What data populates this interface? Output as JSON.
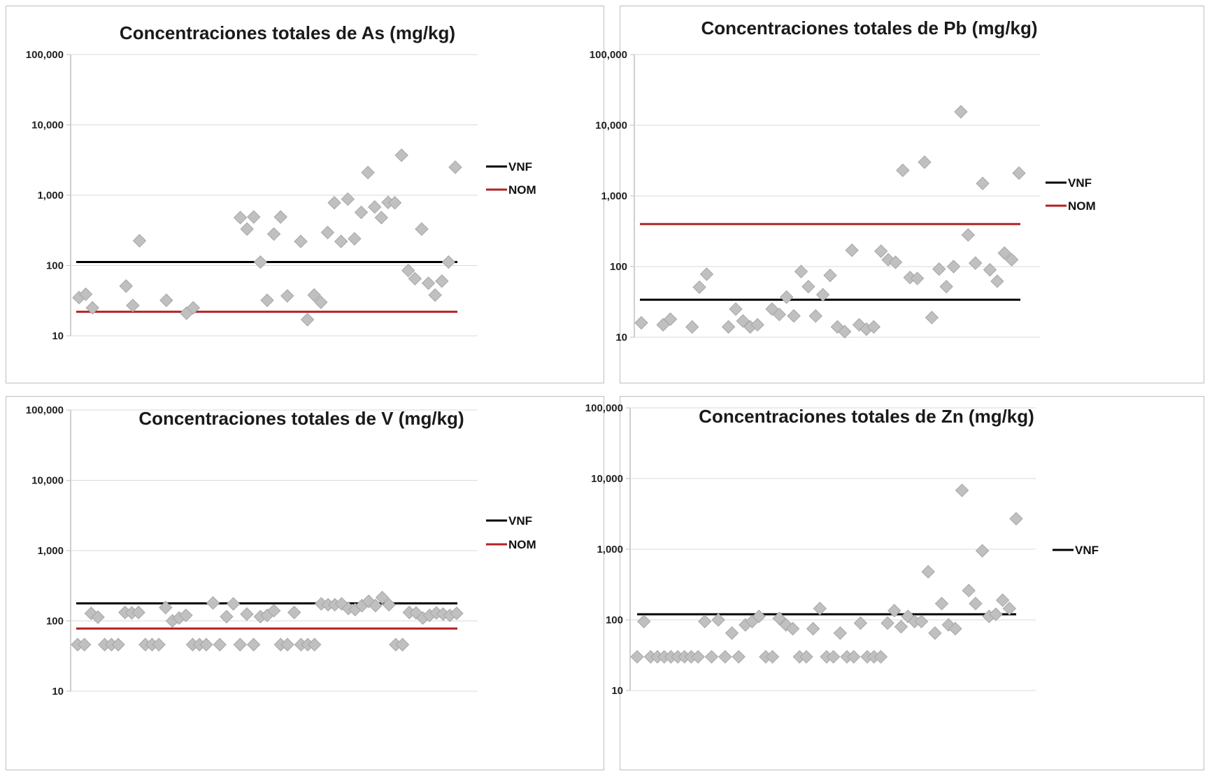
{
  "colors": {
    "marker": "#c0c0c0",
    "marker_stroke": "#a6a6a6",
    "gridline": "#d9d9d9",
    "vnf": "#000000",
    "nom": "#b22222"
  },
  "chart_data": [
    {
      "type": "scatter",
      "title": "Concentraciones totales de As (mg/kg)",
      "yscale": "log",
      "ylim": [
        10,
        100000
      ],
      "yticks": [
        "10",
        "100",
        "1,000",
        "10,000",
        "100,000"
      ],
      "grid": true,
      "legend_position": "right",
      "legend": [
        "VNF",
        "NOM"
      ],
      "reference_lines": [
        {
          "name": "VNF",
          "value": 112,
          "color": "#000000"
        },
        {
          "name": "NOM",
          "value": 22,
          "color": "#b22222"
        }
      ],
      "x": [
        1,
        2,
        3,
        4,
        5,
        6,
        7,
        8,
        9,
        10,
        11,
        12,
        13,
        14,
        15,
        16,
        17,
        18,
        19,
        20,
        21,
        22,
        23,
        24,
        25,
        26,
        27,
        28,
        29,
        30,
        31,
        32,
        33,
        34,
        35,
        36,
        37,
        38,
        39,
        40,
        41,
        42,
        43,
        44,
        45,
        46,
        47,
        48,
        49,
        50,
        51,
        52,
        53,
        54,
        55,
        56,
        57,
        58,
        59,
        60
      ],
      "values": [
        35,
        39,
        25,
        null,
        null,
        null,
        null,
        51,
        27,
        225,
        null,
        null,
        null,
        32,
        null,
        null,
        21,
        25,
        null,
        null,
        null,
        null,
        null,
        null,
        480,
        330,
        490,
        112,
        32,
        280,
        490,
        37,
        null,
        220,
        17,
        38,
        30,
        295,
        780,
        220,
        880,
        240,
        570,
        2100,
        680,
        480,
        790,
        780,
        3700,
        85,
        65,
        330,
        56,
        38,
        60,
        112,
        2500,
        null,
        null,
        null
      ]
    },
    {
      "type": "scatter",
      "title": "Concentraciones totales de Pb (mg/kg)",
      "yscale": "log",
      "ylim": [
        10,
        100000
      ],
      "yticks": [
        "10",
        "100",
        "1,000",
        "10,000",
        "100,000"
      ],
      "grid": true,
      "legend_position": "right",
      "legend": [
        "VNF",
        "NOM"
      ],
      "reference_lines": [
        {
          "name": "VNF",
          "value": 34,
          "color": "#000000"
        },
        {
          "name": "NOM",
          "value": 400,
          "color": "#b22222"
        }
      ],
      "x": [
        1,
        2,
        3,
        4,
        5,
        6,
        7,
        8,
        9,
        10,
        11,
        12,
        13,
        14,
        15,
        16,
        17,
        18,
        19,
        20,
        21,
        22,
        23,
        24,
        25,
        26,
        27,
        28,
        29,
        30,
        31,
        32,
        33,
        34,
        35,
        36,
        37,
        38,
        39,
        40,
        41,
        42,
        43,
        44,
        45,
        46,
        47,
        48,
        49,
        50,
        51,
        52,
        53,
        54,
        55,
        56,
        57,
        58,
        59,
        60
      ],
      "values": [
        16,
        null,
        null,
        15,
        18,
        null,
        null,
        14,
        51,
        78,
        null,
        null,
        14,
        25,
        17,
        14,
        15,
        null,
        25,
        21,
        37,
        20,
        85,
        52,
        20,
        40,
        75,
        14,
        12,
        170,
        15,
        13,
        14,
        165,
        125,
        115,
        2300,
        70,
        68,
        3000,
        19,
        92,
        52,
        100,
        15500,
        280,
        112,
        1500,
        90,
        62,
        155,
        125,
        2100,
        null,
        null,
        null,
        null,
        null,
        null,
        null
      ]
    },
    {
      "type": "scatter",
      "title": "Concentraciones totales de V (mg/kg)",
      "yscale": "log",
      "ylim": [
        10,
        100000
      ],
      "yticks": [
        "10",
        "100",
        "1,000",
        "10,000",
        "100,000"
      ],
      "grid": true,
      "legend_position": "right",
      "legend": [
        "VNF",
        "NOM"
      ],
      "reference_lines": [
        {
          "name": "VNF",
          "value": 178,
          "color": "#000000"
        },
        {
          "name": "NOM",
          "value": 78,
          "color": "#b22222"
        }
      ],
      "x": [
        1,
        2,
        3,
        4,
        5,
        6,
        7,
        8,
        9,
        10,
        11,
        12,
        13,
        14,
        15,
        16,
        17,
        18,
        19,
        20,
        21,
        22,
        23,
        24,
        25,
        26,
        27,
        28,
        29,
        30,
        31,
        32,
        33,
        34,
        35,
        36,
        37,
        38,
        39,
        40,
        41,
        42,
        43,
        44,
        45,
        46,
        47,
        48,
        49,
        50,
        51,
        52,
        53,
        54,
        55,
        56,
        57,
        58,
        59,
        60
      ],
      "values": [
        46,
        46,
        128,
        113,
        46,
        46,
        46,
        132,
        130,
        132,
        46,
        46,
        46,
        155,
        100,
        110,
        120,
        46,
        46,
        46,
        180,
        46,
        115,
        175,
        46,
        125,
        46,
        115,
        120,
        140,
        46,
        46,
        132,
        46,
        46,
        46,
        175,
        170,
        170,
        175,
        150,
        145,
        165,
        190,
        165,
        215,
        170,
        46,
        46,
        132,
        130,
        110,
        120,
        130,
        125,
        120,
        128,
        null,
        null,
        null
      ]
    },
    {
      "type": "scatter",
      "title": "Concentraciones totales de Zn (mg/kg)",
      "yscale": "log",
      "ylim": [
        10,
        100000
      ],
      "yticks": [
        "10",
        "100",
        "1,000",
        "10,000",
        "100,000"
      ],
      "grid": true,
      "legend_position": "right",
      "legend": [
        "VNF"
      ],
      "reference_lines": [
        {
          "name": "VNF",
          "value": 120,
          "color": "#000000"
        }
      ],
      "x": [
        1,
        2,
        3,
        4,
        5,
        6,
        7,
        8,
        9,
        10,
        11,
        12,
        13,
        14,
        15,
        16,
        17,
        18,
        19,
        20,
        21,
        22,
        23,
        24,
        25,
        26,
        27,
        28,
        29,
        30,
        31,
        32,
        33,
        34,
        35,
        36,
        37,
        38,
        39,
        40,
        41,
        42,
        43,
        44,
        45,
        46,
        47,
        48,
        49,
        50,
        51,
        52,
        53,
        54,
        55,
        56,
        57,
        58,
        59,
        60
      ],
      "values": [
        30,
        95,
        30,
        30,
        30,
        30,
        30,
        30,
        30,
        30,
        95,
        30,
        100,
        30,
        65,
        30,
        85,
        95,
        112,
        30,
        30,
        105,
        85,
        75,
        30,
        30,
        75,
        145,
        30,
        30,
        65,
        30,
        30,
        90,
        30,
        30,
        30,
        90,
        135,
        80,
        112,
        95,
        95,
        480,
        65,
        170,
        85,
        75,
        6800,
        260,
        170,
        950,
        112,
        120,
        190,
        145,
        2700,
        null,
        null,
        null
      ]
    }
  ]
}
